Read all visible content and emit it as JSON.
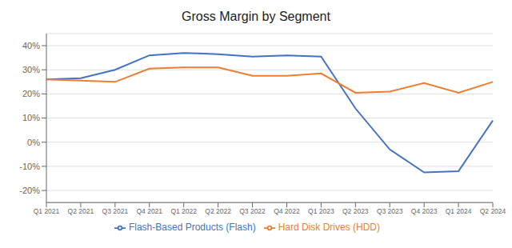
{
  "chart_data": {
    "type": "line",
    "title": "Gross Margin by Segment",
    "categories": [
      "Q1 2021",
      "Q2 2021",
      "Q3 2021",
      "Q4 2021",
      "Q1 2022",
      "Q2 2022",
      "Q3 2022",
      "Q4 2022",
      "Q1 2023",
      "Q2 2023",
      "Q3 2023",
      "Q4 2023",
      "Q1 2024",
      "Q2 2024"
    ],
    "series": [
      {
        "name": "Flash-Based Products (Flash)",
        "color": "#4472C4",
        "values": [
          0.26,
          0.265,
          0.3,
          0.36,
          0.37,
          0.365,
          0.355,
          0.36,
          0.355,
          0.14,
          -0.03,
          -0.125,
          -0.12,
          0.09
        ]
      },
      {
        "name": "Hard Disk Drives (HDD)",
        "color": "#ED7D31",
        "values": [
          0.26,
          0.255,
          0.25,
          0.305,
          0.31,
          0.31,
          0.275,
          0.275,
          0.285,
          0.205,
          0.21,
          0.245,
          0.205,
          0.25
        ]
      }
    ],
    "ylim": [
      -0.25,
      0.45
    ],
    "yticks": [
      {
        "value": -0.2,
        "label": "-20%"
      },
      {
        "value": -0.1,
        "label": "-10%"
      },
      {
        "value": 0,
        "label": "0%"
      },
      {
        "value": 0.1,
        "label": "10%"
      },
      {
        "value": 0.2,
        "label": "20%"
      },
      {
        "value": 0.3,
        "label": "30%"
      },
      {
        "value": 0.4,
        "label": "40%"
      }
    ],
    "grid": true,
    "legend": "bottom"
  }
}
